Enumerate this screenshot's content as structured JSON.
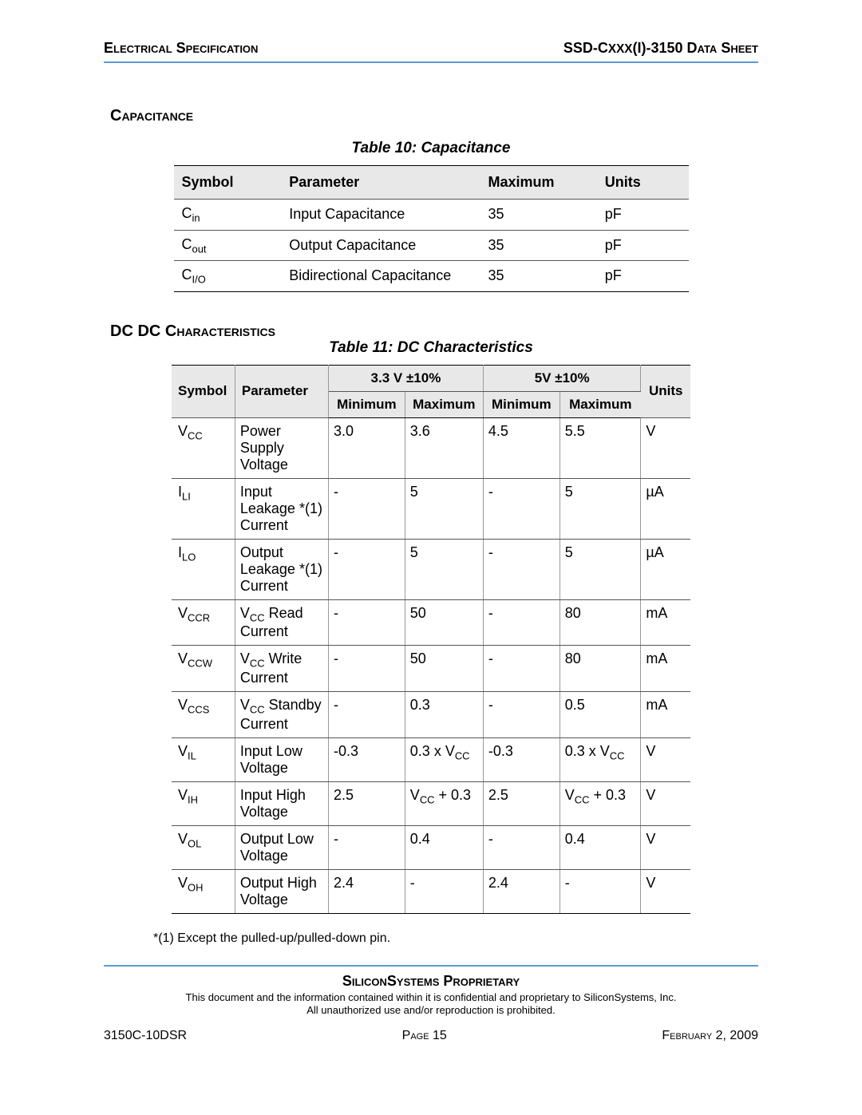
{
  "header": {
    "left": "Electrical Specification",
    "right_prefix": "SSD-C",
    "right_mid": "xxx",
    "right_suffix": "(I)-3150 Data Sheet"
  },
  "section1": {
    "heading": "Capacitance",
    "caption": "Table 10:  Capacitance",
    "columns": [
      "Symbol",
      "Parameter",
      "Maximum",
      "Units"
    ],
    "col_widths": [
      "130px",
      "265px",
      "140px",
      "110px"
    ],
    "rows": [
      {
        "sym": "C",
        "sub": "in",
        "param": "Input Capacitance",
        "max": "35",
        "units": "pF"
      },
      {
        "sym": "C",
        "sub": "out",
        "param": "Output Capacitance",
        "max": "35",
        "units": "pF"
      },
      {
        "sym": "C",
        "sub": "I/O",
        "param": "Bidirectional Capacitance",
        "max": "35",
        "units": "pF"
      }
    ]
  },
  "section2": {
    "heading": "DC Characteristics",
    "caption": "Table 11:  DC Characteristics",
    "header_top": {
      "symbol": "Symbol",
      "parameter": "Parameter",
      "v33": "3.3 V ±10%",
      "v5": "5V ±10%",
      "units": "Units"
    },
    "header_sub": {
      "min": "Minimum",
      "max": "Maximum"
    },
    "col_widths": [
      "70px",
      "130px",
      "95px",
      "95px",
      "95px",
      "105px",
      "60px"
    ],
    "rows": [
      {
        "sym": "V",
        "sub": "CC",
        "param": "Power Supply Voltage",
        "min33": "3.0",
        "max33": "3.6",
        "min5": "4.5",
        "max5": "5.5",
        "units": "V"
      },
      {
        "sym": "I",
        "sub": "LI",
        "param": "Input Leakage *(1) Current",
        "min33": "-",
        "max33": "5",
        "min5": "-",
        "max5": "5",
        "units": "µA"
      },
      {
        "sym": "I",
        "sub": "LO",
        "param": "Output Leakage *(1) Current",
        "min33": "-",
        "max33": "5",
        "min5": "-",
        "max5": "5",
        "units": "µA"
      },
      {
        "sym": "V",
        "sub": "CCR",
        "param_html": "V<sub>CC</sub> Read Current",
        "min33": "-",
        "max33": "50",
        "min5": "-",
        "max5": "80",
        "units": "mA"
      },
      {
        "sym": "V",
        "sub": "CCW",
        "param_html": "V<sub>CC</sub> Write Current",
        "min33": "-",
        "max33": "50",
        "min5": "-",
        "max5": "80",
        "units": "mA"
      },
      {
        "sym": "V",
        "sub": "CCS",
        "param_html": "V<sub>CC</sub> Standby Current",
        "min33": "-",
        "max33": "0.3",
        "min5": "-",
        "max5": "0.5",
        "units": "mA"
      },
      {
        "sym": "V",
        "sub": "IL",
        "param": "Input Low Voltage",
        "min33": "-0.3",
        "max33_html": "0.3 x V<sub>CC</sub>",
        "min5": "-0.3",
        "max5_html": "0.3 x V<sub>CC</sub>",
        "units": "V"
      },
      {
        "sym": "V",
        "sub": "IH",
        "param": "Input High Voltage",
        "min33": "2.5",
        "max33_html": "V<sub>CC</sub> + 0.3",
        "min5": "2.5",
        "max5_html": "V<sub>CC</sub> + 0.3",
        "units": "V"
      },
      {
        "sym": "V",
        "sub": "OL",
        "param": "Output Low Voltage",
        "min33": "-",
        "max33": "0.4",
        "min5": "-",
        "max5": "0.4",
        "units": "V"
      },
      {
        "sym": "V",
        "sub": "OH",
        "param": "Output High Voltage",
        "min33": "2.4",
        "max33": "-",
        "min5": "2.4",
        "max5": "-",
        "units": "V"
      }
    ]
  },
  "footnote": "*(1) Except the pulled-up/pulled-down pin.",
  "footer": {
    "proprietary": "SiliconSystems Proprietary",
    "confidential_l1": "This document and the information contained within it is confidential and proprietary to SiliconSystems, Inc.",
    "confidential_l2": "All unauthorized use and/or reproduction is prohibited.",
    "left": "3150C-10DSR",
    "center_label": "Page",
    "center_num": "15",
    "right": "February 2, 2009"
  }
}
